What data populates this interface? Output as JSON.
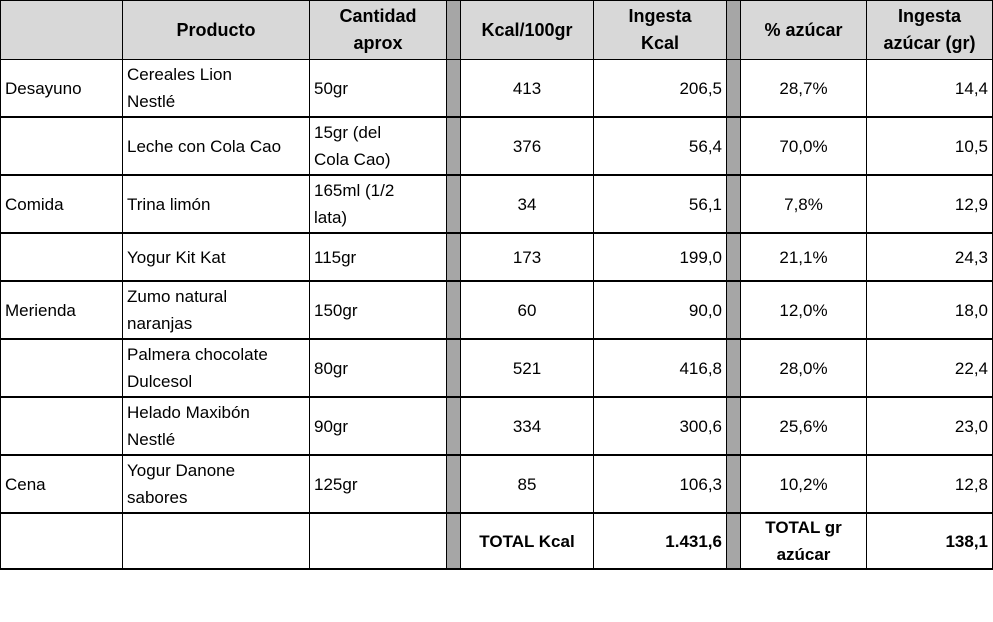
{
  "headers": {
    "meal": "",
    "product": "Producto",
    "quantity": "Cantidad\naprox",
    "kcal100": "Kcal/100gr",
    "kcal_intake": "Ingesta\nKcal",
    "sugar_pct": "% azúcar",
    "sugar_intake": "Ingesta\nazúcar (gr)"
  },
  "rows": [
    {
      "meal": "Desayuno",
      "product": "Cereales Lion\nNestlé",
      "quantity": "50gr",
      "kcal100": "413",
      "kcal_intake": "206,5",
      "sugar_pct": "28,7%",
      "sugar_intake": "14,4"
    },
    {
      "meal": "",
      "product": "Leche con Cola Cao",
      "quantity": "15gr (del\nCola Cao)",
      "kcal100": "376",
      "kcal_intake": "56,4",
      "sugar_pct": "70,0%",
      "sugar_intake": "10,5"
    },
    {
      "meal": "Comida",
      "product": "Trina limón",
      "quantity": "165ml (1/2\nlata)",
      "kcal100": "34",
      "kcal_intake": "56,1",
      "sugar_pct": "7,8%",
      "sugar_intake": "12,9"
    },
    {
      "meal": "",
      "product": "Yogur Kit Kat",
      "quantity": "115gr",
      "kcal100": "173",
      "kcal_intake": "199,0",
      "sugar_pct": "21,1%",
      "sugar_intake": "24,3"
    },
    {
      "meal": "Merienda",
      "product": "Zumo natural\nnaranjas",
      "quantity": "150gr",
      "kcal100": "60",
      "kcal_intake": "90,0",
      "sugar_pct": "12,0%",
      "sugar_intake": "18,0"
    },
    {
      "meal": "",
      "product": "Palmera chocolate\nDulcesol",
      "quantity": "80gr",
      "kcal100": "521",
      "kcal_intake": "416,8",
      "sugar_pct": "28,0%",
      "sugar_intake": "22,4"
    },
    {
      "meal": "",
      "product": "Helado Maxibón\nNestlé",
      "quantity": "90gr",
      "kcal100": "334",
      "kcal_intake": "300,6",
      "sugar_pct": "25,6%",
      "sugar_intake": "23,0"
    },
    {
      "meal": "Cena",
      "product": "Yogur Danone\nsabores",
      "quantity": "125gr",
      "kcal100": "85",
      "kcal_intake": "106,3",
      "sugar_pct": "10,2%",
      "sugar_intake": "12,8"
    }
  ],
  "totals": {
    "kcal_label": "TOTAL Kcal",
    "kcal_value": "1.431,6",
    "sugar_label": "TOTAL gr\nazúcar",
    "sugar_value": "138,1"
  },
  "colors": {
    "header_bg": "#d8d8d8",
    "separator_bg": "#a6a6a6"
  }
}
